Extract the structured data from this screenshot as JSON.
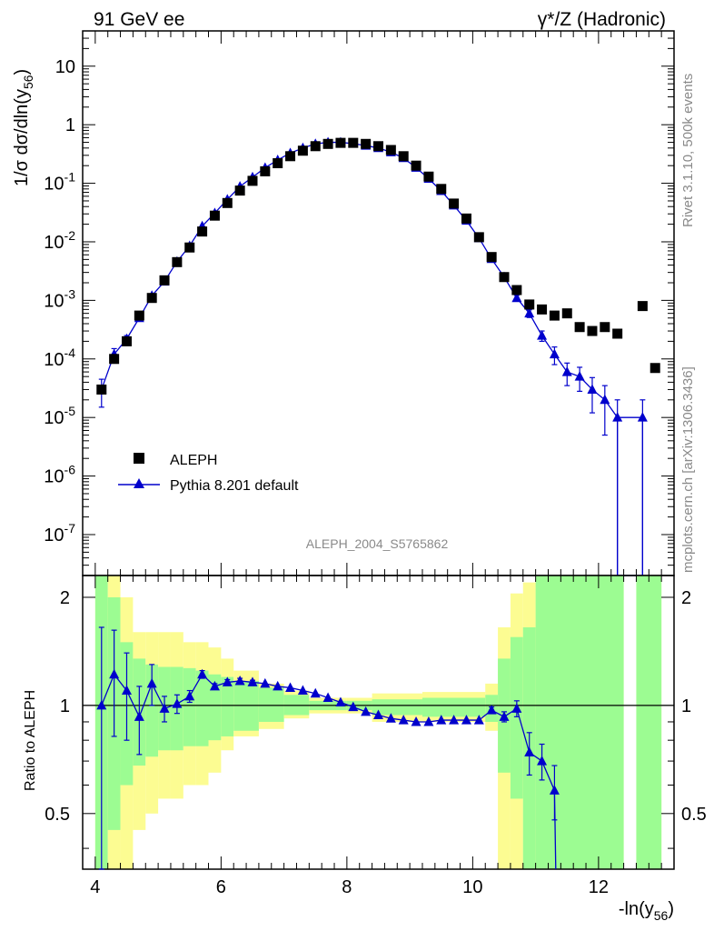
{
  "header": {
    "left": "91 GeV ee",
    "right": "γ*/Z (Hadronic)"
  },
  "side": {
    "rivet": "Rivet 3.1.10,  500k events",
    "mcplots": "mcplots.cern.ch [arXiv:1306.3436]"
  },
  "analysis_id": "ALEPH_2004_S5765862",
  "legend": {
    "data": "ALEPH",
    "mc": "Pythia 8.201 default"
  },
  "axes": {
    "main_y_label_pre": "1/σ  dσ/dln(y",
    "main_y_label_sub": "56",
    "main_y_label_post": ")",
    "ratio_y_label": "Ratio to ALEPH",
    "x_label_pre": "-ln(y",
    "x_label_sub": "56",
    "x_label_post": ")"
  },
  "colors": {
    "mc": "#0000cc",
    "data": "#000000",
    "band_inner": "#9cfc92",
    "band_outer": "#fcfc92"
  },
  "chart_data": [
    {
      "type": "scatter",
      "scale": "log",
      "xlim": [
        3.8,
        13.2
      ],
      "ylim": [
        2e-08,
        40
      ],
      "y_tick_labels": [
        "10^-7",
        "10^-6",
        "10^-5",
        "10^-4",
        "10^-3",
        "10^-2",
        "10^-1",
        "1",
        "10"
      ],
      "series": [
        {
          "name": "ALEPH",
          "marker": "square",
          "x": [
            4.1,
            4.3,
            4.5,
            4.7,
            4.9,
            5.1,
            5.3,
            5.5,
            5.7,
            5.9,
            6.1,
            6.3,
            6.5,
            6.7,
            6.9,
            7.1,
            7.3,
            7.5,
            7.7,
            7.9,
            8.1,
            8.3,
            8.5,
            8.7,
            8.9,
            9.1,
            9.3,
            9.5,
            9.7,
            9.9,
            10.1,
            10.3,
            10.5,
            10.7,
            10.9,
            11.1,
            11.3,
            11.5,
            11.7,
            11.9,
            12.1,
            12.3,
            12.7,
            12.9
          ],
          "y": [
            3e-05,
            0.0001,
            0.0002,
            0.00055,
            0.0011,
            0.0022,
            0.0045,
            0.008,
            0.015,
            0.028,
            0.046,
            0.075,
            0.11,
            0.16,
            0.22,
            0.29,
            0.36,
            0.43,
            0.47,
            0.49,
            0.49,
            0.47,
            0.43,
            0.37,
            0.29,
            0.2,
            0.13,
            0.08,
            0.045,
            0.025,
            0.012,
            0.0055,
            0.0025,
            0.0015,
            0.00085,
            0.0007,
            0.00055,
            0.0006,
            0.00035,
            0.0003,
            0.00035,
            0.00027,
            0.0008,
            7e-05
          ]
        },
        {
          "name": "Pythia 8.201 default",
          "marker": "triangle",
          "x": [
            4.1,
            4.3,
            4.5,
            4.7,
            4.9,
            5.1,
            5.3,
            5.5,
            5.7,
            5.9,
            6.1,
            6.3,
            6.5,
            6.7,
            6.9,
            7.1,
            7.3,
            7.5,
            7.7,
            7.9,
            8.1,
            8.3,
            8.5,
            8.7,
            8.9,
            9.1,
            9.3,
            9.5,
            9.7,
            9.9,
            10.1,
            10.3,
            10.5,
            10.7,
            10.9,
            11.1,
            11.3,
            11.5,
            11.7,
            11.9,
            12.1,
            12.3,
            12.7
          ],
          "y": [
            3e-05,
            0.00012,
            0.00022,
            0.0005,
            0.0012,
            0.0021,
            0.0046,
            0.0085,
            0.0185,
            0.031,
            0.053,
            0.088,
            0.127,
            0.184,
            0.25,
            0.328,
            0.4,
            0.47,
            0.5,
            0.5,
            0.475,
            0.44,
            0.4,
            0.34,
            0.27,
            0.185,
            0.12,
            0.074,
            0.042,
            0.023,
            0.0116,
            0.0051,
            0.0025,
            0.0011,
            0.0006,
            0.00025,
            0.00012,
            6e-05,
            5e-05,
            3e-05,
            2e-05,
            1e-05,
            1e-05
          ],
          "err_lo": [
            1.5e-05,
            3e-05,
            3e-05,
            5e-05,
            0.0001,
            0.0001,
            0.0002,
            0.0003,
            0.0005,
            0.0007,
            0.0009,
            0.0012,
            0.0014,
            0.0017,
            0.002,
            0.0023,
            0.0025,
            0.0027,
            0.0028,
            0.0028,
            0.0027,
            0.0026,
            0.0025,
            0.0023,
            0.002,
            0.0017,
            0.0014,
            0.0011,
            0.0008,
            0.0006,
            0.0004,
            0.00027,
            0.00019,
            0.00012,
            9e-05,
            5e-05,
            4e-05,
            2.5e-05,
            2.2e-05,
            1.8e-05,
            1.5e-05,
            1e-05,
            1e-05
          ],
          "err_hi": [
            1.5e-05,
            3e-05,
            3e-05,
            5e-05,
            0.0001,
            0.0001,
            0.0002,
            0.0003,
            0.0005,
            0.0007,
            0.0009,
            0.0012,
            0.0014,
            0.0017,
            0.002,
            0.0023,
            0.0025,
            0.0027,
            0.0028,
            0.0028,
            0.0027,
            0.0026,
            0.0025,
            0.0023,
            0.002,
            0.0017,
            0.0014,
            0.0011,
            0.0008,
            0.0006,
            0.0004,
            0.00027,
            0.00019,
            0.00012,
            9e-05,
            5e-05,
            4e-05,
            2.5e-05,
            2.2e-05,
            1.8e-05,
            1.5e-05,
            1e-05,
            1e-05
          ]
        }
      ]
    },
    {
      "type": "line",
      "xlim": [
        3.8,
        13.2
      ],
      "ylim": [
        0.35,
        2.3
      ],
      "x_ticks": [
        4,
        6,
        8,
        10,
        12
      ],
      "y_ticks": [
        0.5,
        1,
        2
      ],
      "reference_line": 1,
      "bands": [
        {
          "x0": 4.0,
          "x1": 4.2,
          "inner": [
            0.35,
            2.3
          ],
          "outer": [
            0.35,
            2.3
          ]
        },
        {
          "x0": 4.2,
          "x1": 4.4,
          "inner": [
            0.45,
            2.0
          ],
          "outer": [
            0.35,
            2.3
          ]
        },
        {
          "x0": 4.4,
          "x1": 4.6,
          "inner": [
            0.6,
            1.5
          ],
          "outer": [
            0.35,
            2.0
          ]
        },
        {
          "x0": 4.6,
          "x1": 4.8,
          "inner": [
            0.68,
            1.35
          ],
          "outer": [
            0.45,
            1.6
          ]
        },
        {
          "x0": 4.8,
          "x1": 5.0,
          "inner": [
            0.72,
            1.3
          ],
          "outer": [
            0.5,
            1.6
          ]
        },
        {
          "x0": 5.0,
          "x1": 5.2,
          "inner": [
            0.75,
            1.28
          ],
          "outer": [
            0.55,
            1.6
          ]
        },
        {
          "x0": 5.2,
          "x1": 5.4,
          "inner": [
            0.75,
            1.28
          ],
          "outer": [
            0.55,
            1.6
          ]
        },
        {
          "x0": 5.4,
          "x1": 5.6,
          "inner": [
            0.77,
            1.27
          ],
          "outer": [
            0.6,
            1.5
          ]
        },
        {
          "x0": 5.6,
          "x1": 5.8,
          "inner": [
            0.77,
            1.25
          ],
          "outer": [
            0.6,
            1.5
          ]
        },
        {
          "x0": 5.8,
          "x1": 6.0,
          "inner": [
            0.8,
            1.22
          ],
          "outer": [
            0.65,
            1.45
          ]
        },
        {
          "x0": 6.0,
          "x1": 6.2,
          "inner": [
            0.82,
            1.2
          ],
          "outer": [
            0.75,
            1.35
          ]
        },
        {
          "x0": 6.2,
          "x1": 6.6,
          "inner": [
            0.85,
            1.17
          ],
          "outer": [
            0.82,
            1.25
          ]
        },
        {
          "x0": 6.6,
          "x1": 7.0,
          "inner": [
            0.9,
            1.12
          ],
          "outer": [
            0.86,
            1.15
          ]
        },
        {
          "x0": 7.0,
          "x1": 7.4,
          "inner": [
            0.94,
            1.07
          ],
          "outer": [
            0.92,
            1.1
          ]
        },
        {
          "x0": 7.4,
          "x1": 8.0,
          "inner": [
            0.97,
            1.03
          ],
          "outer": [
            0.95,
            1.05
          ]
        },
        {
          "x0": 8.0,
          "x1": 8.4,
          "inner": [
            0.97,
            1.03
          ],
          "outer": [
            0.95,
            1.05
          ]
        },
        {
          "x0": 8.4,
          "x1": 9.2,
          "inner": [
            0.94,
            1.04
          ],
          "outer": [
            0.9,
            1.08
          ]
        },
        {
          "x0": 9.2,
          "x1": 10.2,
          "inner": [
            0.93,
            1.05
          ],
          "outer": [
            0.9,
            1.09
          ]
        },
        {
          "x0": 10.2,
          "x1": 10.4,
          "inner": [
            0.9,
            1.07
          ],
          "outer": [
            0.85,
            1.15
          ]
        },
        {
          "x0": 10.4,
          "x1": 10.6,
          "inner": [
            0.65,
            1.35
          ],
          "outer": [
            0.35,
            1.65
          ]
        },
        {
          "x0": 10.6,
          "x1": 10.8,
          "inner": [
            0.55,
            1.55
          ],
          "outer": [
            0.35,
            2.05
          ]
        },
        {
          "x0": 10.8,
          "x1": 11.0,
          "inner": [
            0.35,
            1.65
          ],
          "outer": [
            0.35,
            2.2
          ]
        },
        {
          "x0": 11.0,
          "x1": 12.4,
          "inner": [
            0.35,
            2.3
          ],
          "outer": [
            0.35,
            2.3
          ]
        },
        {
          "x0": 12.6,
          "x1": 13.0,
          "inner": [
            0.35,
            2.3
          ],
          "outer": [
            0.35,
            2.3
          ]
        }
      ],
      "series": [
        {
          "name": "Pythia 8.201 default",
          "x": [
            4.1,
            4.3,
            4.5,
            4.7,
            4.9,
            5.1,
            5.3,
            5.5,
            5.7,
            5.9,
            6.1,
            6.3,
            6.5,
            6.7,
            6.9,
            7.1,
            7.3,
            7.5,
            7.7,
            7.9,
            8.1,
            8.3,
            8.5,
            8.7,
            8.9,
            9.1,
            9.3,
            9.5,
            9.7,
            9.9,
            10.1,
            10.3,
            10.5,
            10.7,
            10.9,
            11.1,
            11.3
          ],
          "y": [
            1.0,
            1.22,
            1.1,
            0.93,
            1.15,
            0.98,
            1.01,
            1.06,
            1.22,
            1.13,
            1.16,
            1.17,
            1.16,
            1.15,
            1.13,
            1.12,
            1.1,
            1.08,
            1.05,
            1.02,
            0.99,
            0.96,
            0.94,
            0.92,
            0.91,
            0.9,
            0.9,
            0.91,
            0.91,
            0.91,
            0.91,
            0.97,
            0.93,
            0.98,
            0.74,
            0.7,
            0.58
          ],
          "err_lo": [
            0.65,
            0.4,
            0.3,
            0.2,
            0.15,
            0.08,
            0.06,
            0.04,
            0.03,
            0.02,
            0.02,
            0.02,
            0.015,
            0.01,
            0.01,
            0.01,
            0.01,
            0.01,
            0.01,
            0.01,
            0.01,
            0.01,
            0.01,
            0.01,
            0.01,
            0.01,
            0.01,
            0.01,
            0.01,
            0.01,
            0.01,
            0.02,
            0.03,
            0.05,
            0.1,
            0.08,
            0.1
          ],
          "err_hi": [
            0.65,
            0.4,
            0.3,
            0.2,
            0.15,
            0.08,
            0.06,
            0.04,
            0.03,
            0.02,
            0.02,
            0.02,
            0.015,
            0.01,
            0.01,
            0.01,
            0.01,
            0.01,
            0.01,
            0.01,
            0.01,
            0.01,
            0.01,
            0.01,
            0.01,
            0.01,
            0.01,
            0.01,
            0.01,
            0.01,
            0.01,
            0.02,
            0.03,
            0.05,
            0.1,
            0.08,
            0.1
          ]
        }
      ]
    }
  ]
}
